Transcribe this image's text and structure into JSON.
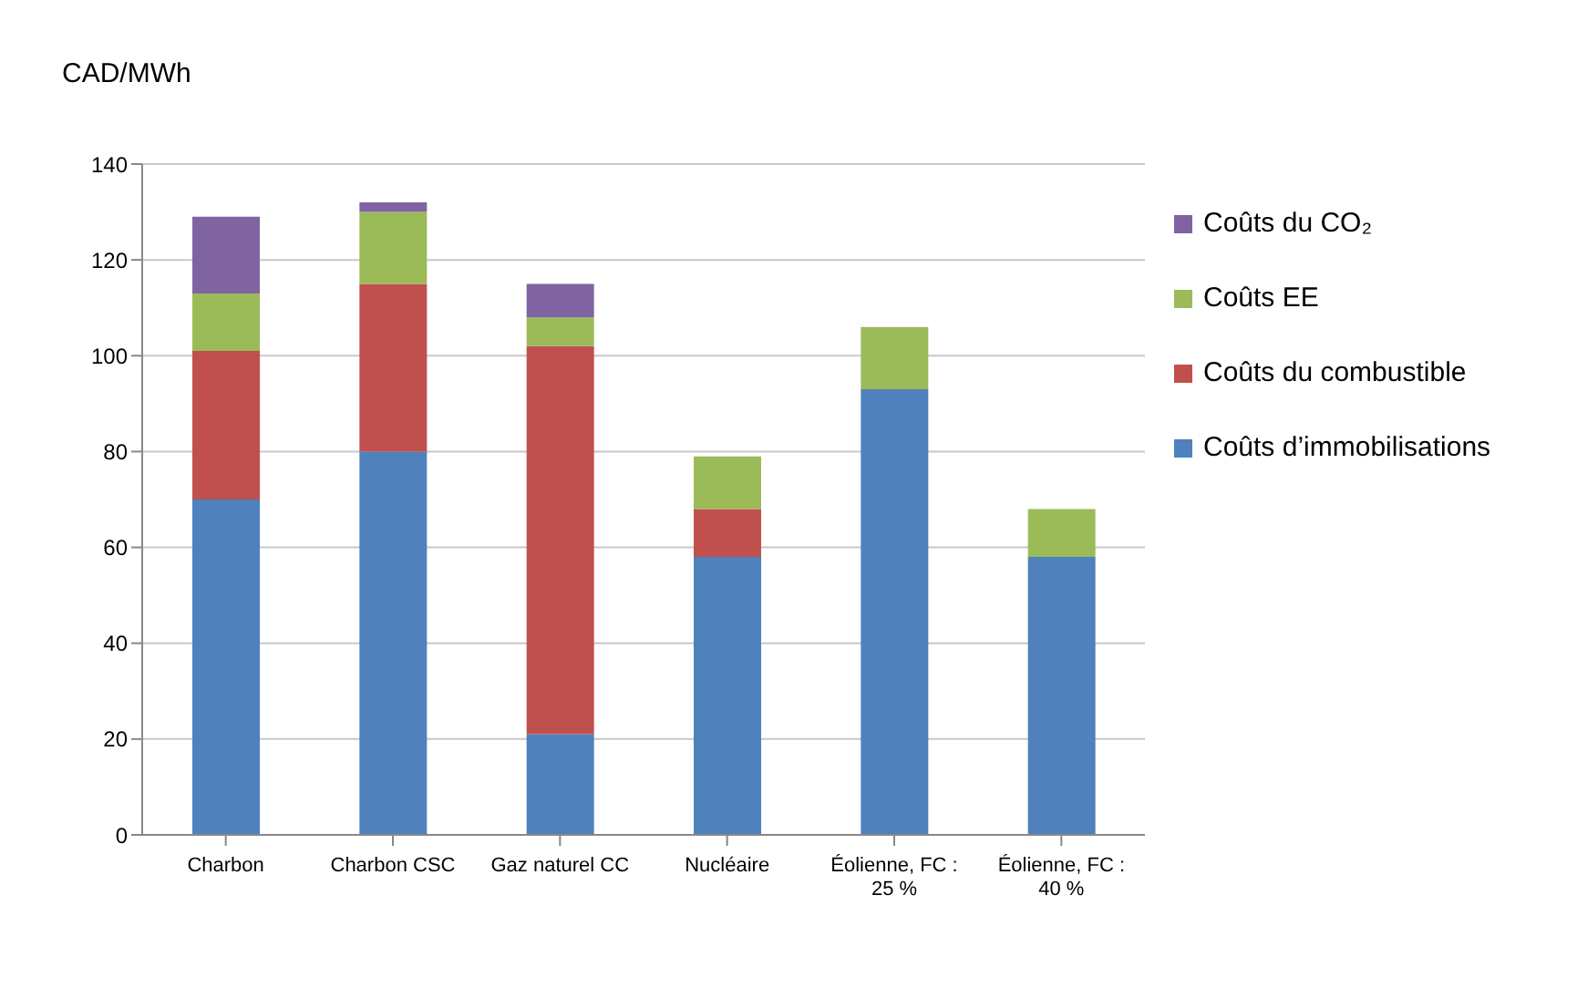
{
  "chart_data": {
    "type": "bar",
    "ylabel": "CAD/MWh",
    "stacked": true,
    "categories": [
      "Charbon",
      "Charbon CSC",
      "Gaz naturel CC",
      "Nucléaire",
      "Éolienne, FC : 25 %",
      "Éolienne, FC : 40 %"
    ],
    "series": [
      {
        "name": "Coûts d’immobilisations",
        "color": "#4f81bd",
        "values": [
          70,
          80,
          21,
          58,
          93,
          58
        ]
      },
      {
        "name": "Coûts du combustible",
        "color": "#c0504d",
        "values": [
          31,
          35,
          81,
          10,
          0,
          0
        ]
      },
      {
        "name": "Coûts EE",
        "color": "#9bbb59",
        "values": [
          12,
          15,
          6,
          11,
          13,
          10
        ]
      },
      {
        "name": "Coûts du CO₂",
        "color": "#8064a2",
        "values": [
          16,
          2,
          7,
          0,
          0,
          0
        ]
      }
    ],
    "ylim": [
      0,
      140
    ],
    "yticks": [
      0,
      20,
      40,
      60,
      80,
      100,
      120,
      140
    ],
    "grid": "y",
    "legend": "right"
  }
}
